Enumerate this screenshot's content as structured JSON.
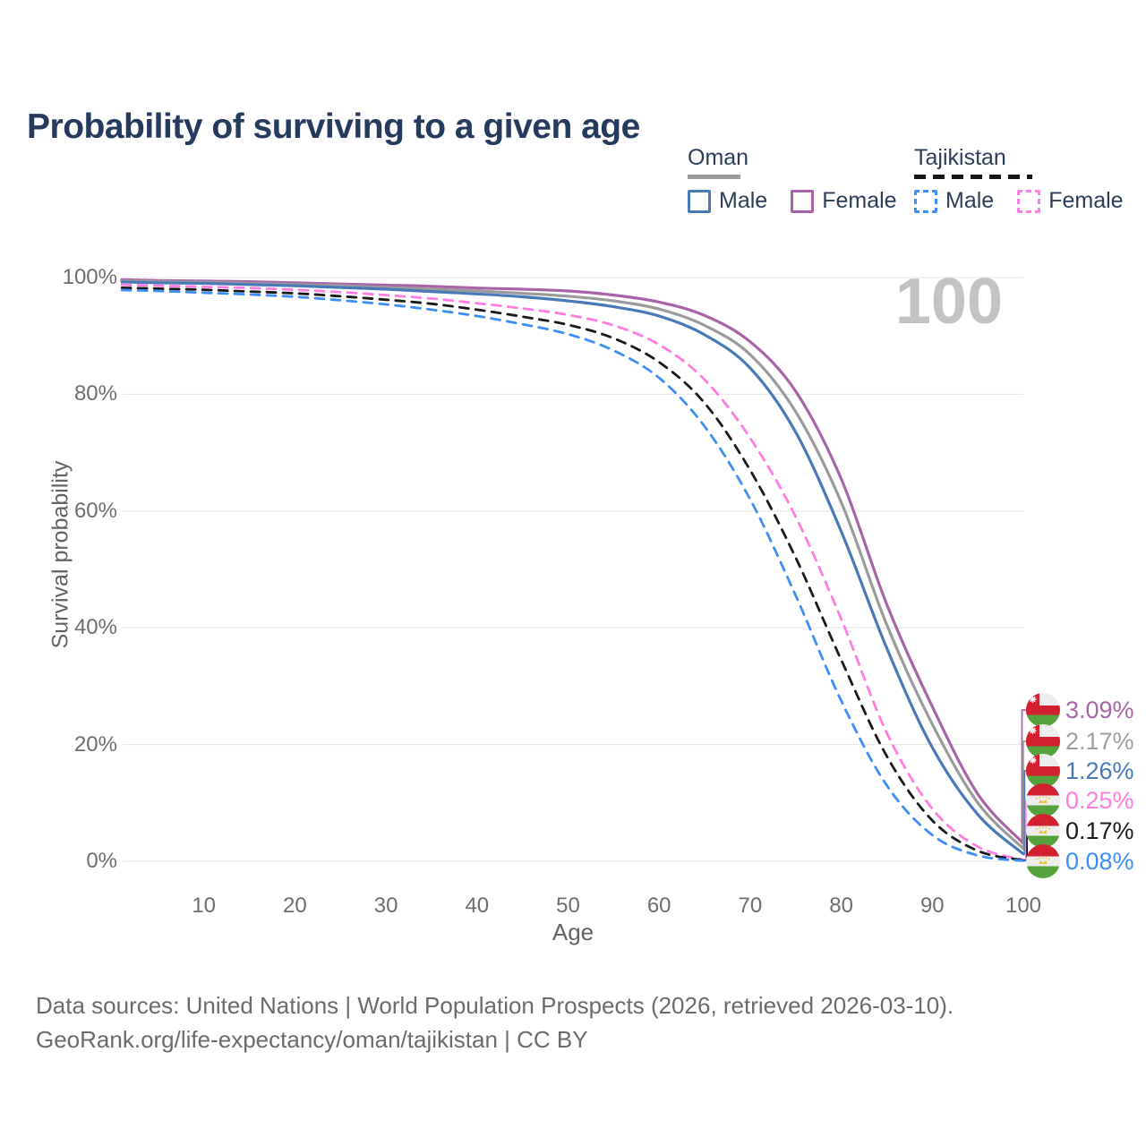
{
  "title": "Probability of surviving to a given age",
  "annotation": {
    "big_label": "100"
  },
  "legend": {
    "groups": [
      {
        "label": "Oman",
        "underline": "solid",
        "underline_color": "#9b9b9b",
        "items": [
          {
            "label": "Male",
            "color": "#4a79b8",
            "dashed": false
          },
          {
            "label": "Female",
            "color": "#a765a8",
            "dashed": false
          }
        ]
      },
      {
        "label": "Tajikistan",
        "underline": "dashed",
        "underline_color": "#161616",
        "items": [
          {
            "label": "Male",
            "color": "#3e8ef7",
            "dashed": true
          },
          {
            "label": "Female",
            "color": "#ff7ce0",
            "dashed": true
          }
        ]
      }
    ]
  },
  "axes": {
    "y_label": "Survival probability",
    "x_label": "Age",
    "y_ticks": [
      {
        "label": "100%",
        "value": 100
      },
      {
        "label": "80%",
        "value": 80
      },
      {
        "label": "60%",
        "value": 60
      },
      {
        "label": "40%",
        "value": 40
      },
      {
        "label": "20%",
        "value": 20
      },
      {
        "label": "0%",
        "value": 0
      }
    ],
    "x_ticks": [
      {
        "label": "10",
        "value": 10
      },
      {
        "label": "20",
        "value": 20
      },
      {
        "label": "30",
        "value": 30
      },
      {
        "label": "40",
        "value": 40
      },
      {
        "label": "50",
        "value": 50
      },
      {
        "label": "60",
        "value": 60
      },
      {
        "label": "70",
        "value": 70
      },
      {
        "label": "80",
        "value": 80
      },
      {
        "label": "90",
        "value": 90
      },
      {
        "label": "100",
        "value": 100
      }
    ]
  },
  "chart_data": {
    "type": "line",
    "title": "Probability of surviving to a given age",
    "xlabel": "Age",
    "ylabel": "Survival probability",
    "xlim": [
      0,
      100
    ],
    "ylim": [
      0,
      100
    ],
    "grid": "horizontal",
    "legend_position": "top-right",
    "x": [
      0,
      5,
      10,
      15,
      20,
      25,
      30,
      35,
      40,
      45,
      50,
      55,
      60,
      65,
      70,
      75,
      80,
      85,
      90,
      95,
      100
    ],
    "series": [
      {
        "name": "Oman Female",
        "color": "#a765a8",
        "dashed": false,
        "flag": "oman",
        "end_label": "3.09%",
        "values": [
          100,
          99.5,
          99.4,
          99.3,
          99.1,
          98.9,
          98.7,
          98.5,
          98.2,
          98.0,
          97.7,
          97.0,
          95.8,
          93.5,
          89.0,
          80.5,
          65.5,
          44.0,
          26.5,
          11.5,
          3.09
        ]
      },
      {
        "name": "Oman Both sexes",
        "color": "#9b9b9b",
        "dashed": false,
        "flag": "oman",
        "end_label": "2.17%",
        "values": [
          100,
          99.3,
          99.2,
          99.0,
          98.8,
          98.6,
          98.3,
          98.0,
          97.7,
          97.3,
          96.8,
          96.0,
          94.6,
          91.8,
          86.8,
          77.0,
          61.5,
          40.5,
          23.5,
          10.0,
          2.17
        ]
      },
      {
        "name": "Oman Male",
        "color": "#4a79b8",
        "dashed": false,
        "flag": "oman",
        "end_label": "1.26%",
        "values": [
          100,
          99.1,
          99.0,
          98.8,
          98.6,
          98.3,
          98.0,
          97.6,
          97.2,
          96.7,
          96.0,
          95.0,
          93.4,
          90.2,
          84.5,
          73.5,
          56.5,
          36.5,
          19.5,
          8.0,
          1.26
        ]
      },
      {
        "name": "Tajikistan Female",
        "color": "#ff7ce0",
        "dashed": true,
        "flag": "tajikistan",
        "end_label": "0.25%",
        "values": [
          100,
          98.6,
          98.4,
          98.2,
          97.9,
          97.5,
          97.0,
          96.4,
          95.6,
          94.7,
          93.6,
          91.8,
          88.5,
          82.5,
          72.5,
          59.0,
          41.5,
          22.0,
          9.0,
          2.5,
          0.25
        ]
      },
      {
        "name": "Tajikistan Both sexes",
        "color": "#1a1a1a",
        "dashed": true,
        "flag": "tajikistan",
        "end_label": "0.17%",
        "values": [
          100,
          98.1,
          97.9,
          97.6,
          97.3,
          96.8,
          96.2,
          95.5,
          94.5,
          93.3,
          91.9,
          89.6,
          85.5,
          78.5,
          67.0,
          52.0,
          34.5,
          18.0,
          7.0,
          1.8,
          0.17
        ]
      },
      {
        "name": "Tajikistan Male",
        "color": "#3e8ef7",
        "dashed": true,
        "flag": "tajikistan",
        "end_label": "0.08%",
        "values": [
          100,
          97.7,
          97.4,
          97.1,
          96.7,
          96.1,
          95.4,
          94.5,
          93.4,
          92.0,
          90.3,
          87.5,
          82.8,
          74.5,
          62.0,
          45.5,
          27.5,
          13.0,
          4.5,
          1.0,
          0.08
        ]
      }
    ]
  },
  "flag_colors": {
    "red": "#d32030",
    "green": "#55a13c",
    "white": "#ededed",
    "yellow": "#e9c43c"
  },
  "footer": {
    "line1": "Data sources: United Nations | World Population Prospects (2026, retrieved 2026-03-10).",
    "line2": "GeoRank.org/life-expectancy/oman/tajikistan | CC BY"
  }
}
